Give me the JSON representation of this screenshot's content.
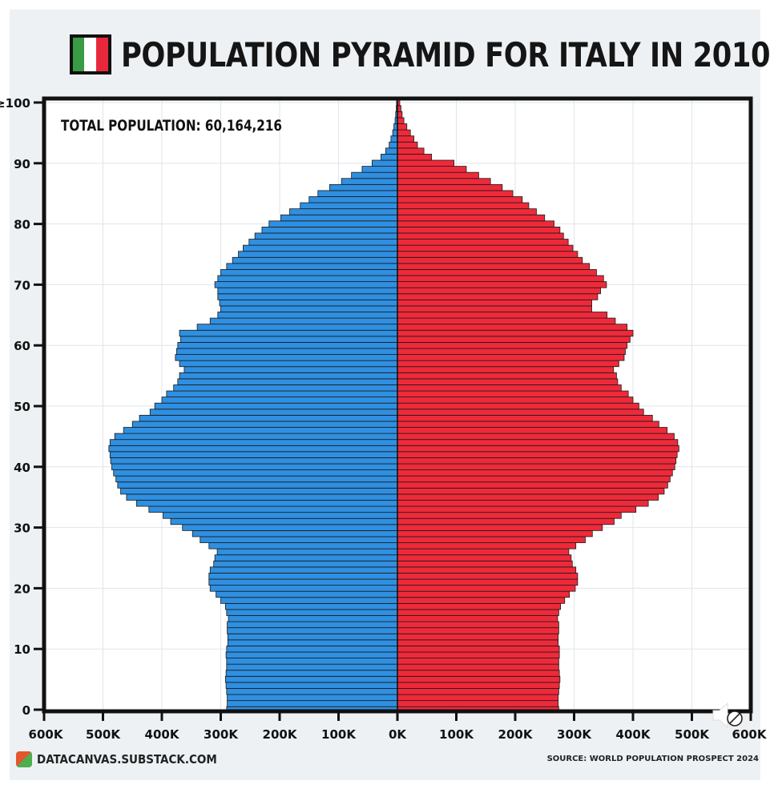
{
  "title": "POPULATION PYRAMID FOR ITALY IN 2010",
  "flag_colors": [
    "#3a9b45",
    "#ffffff",
    "#e8283a"
  ],
  "total_population_label": "TOTAL POPULATION: 60,164,216",
  "brand": "DATACANVAS.SUBSTACK.COM",
  "source": "SOURCE: WORLD POPULATION PROSPECT 2024",
  "colors": {
    "male": "#2f8fe0",
    "female": "#ee2a3a",
    "frame": "#111111",
    "grid": "#dfe5ea",
    "background": "#edf1f4",
    "plot_bg": "#ffffff"
  },
  "sound_icon": "speaker-icon",
  "chart_data": {
    "type": "bar",
    "orientation": "horizontal",
    "title": "POPULATION PYRAMID FOR ITALY IN 2010",
    "annotation": "TOTAL POPULATION: 60,164,216",
    "xlim": [
      -600000,
      600000
    ],
    "x_ticks": [
      -600000,
      -500000,
      -400000,
      -300000,
      -200000,
      -100000,
      0,
      100000,
      200000,
      300000,
      400000,
      500000,
      600000
    ],
    "x_tick_labels": [
      "600K",
      "500K",
      "400K",
      "300K",
      "200K",
      "100K",
      "0K",
      "100K",
      "200K",
      "300K",
      "400K",
      "500K",
      "600K"
    ],
    "y_ticks": [
      0,
      10,
      20,
      30,
      40,
      50,
      60,
      70,
      80,
      90,
      100
    ],
    "y_tick_labels": [
      "0",
      "10",
      "20",
      "30",
      "40",
      "50",
      "60",
      "70",
      "80",
      "90",
      "≥100"
    ],
    "grid": true,
    "categories": [
      0,
      1,
      2,
      3,
      4,
      5,
      6,
      7,
      8,
      9,
      10,
      11,
      12,
      13,
      14,
      15,
      16,
      17,
      18,
      19,
      20,
      21,
      22,
      23,
      24,
      25,
      26,
      27,
      28,
      29,
      30,
      31,
      32,
      33,
      34,
      35,
      36,
      37,
      38,
      39,
      40,
      41,
      42,
      43,
      44,
      45,
      46,
      47,
      48,
      49,
      50,
      51,
      52,
      53,
      54,
      55,
      56,
      57,
      58,
      59,
      60,
      61,
      62,
      63,
      64,
      65,
      66,
      67,
      68,
      69,
      70,
      71,
      72,
      73,
      74,
      75,
      76,
      77,
      78,
      79,
      80,
      81,
      82,
      83,
      84,
      85,
      86,
      87,
      88,
      89,
      90,
      91,
      92,
      93,
      94,
      95,
      96,
      97,
      98,
      99,
      100
    ],
    "series": [
      {
        "side": "left",
        "color": "#2f8fe0",
        "values": [
          290000,
          289000,
          289000,
          290000,
          291000,
          292000,
          291000,
          290000,
          290000,
          291000,
          290000,
          288000,
          288000,
          289000,
          289000,
          287000,
          290000,
          292000,
          300000,
          308000,
          318000,
          320000,
          320000,
          318000,
          312000,
          310000,
          306000,
          320000,
          335000,
          348000,
          365000,
          385000,
          398000,
          422000,
          443000,
          460000,
          470000,
          475000,
          478000,
          482000,
          485000,
          487000,
          488000,
          490000,
          488000,
          480000,
          465000,
          450000,
          438000,
          420000,
          412000,
          400000,
          392000,
          380000,
          373000,
          370000,
          362000,
          370000,
          377000,
          375000,
          373000,
          368000,
          370000,
          340000,
          318000,
          305000,
          300000,
          302000,
          305000,
          305000,
          310000,
          305000,
          300000,
          290000,
          280000,
          270000,
          262000,
          252000,
          242000,
          230000,
          218000,
          198000,
          183000,
          165000,
          150000,
          135000,
          115000,
          95000,
          78000,
          60000,
          43000,
          28000,
          20000,
          14000,
          11000,
          8000,
          6000,
          4000,
          3000,
          2000,
          1500
        ]
      },
      {
        "side": "right",
        "color": "#ee2a3a",
        "values": [
          274000,
          273000,
          273000,
          274000,
          275000,
          276000,
          275000,
          274000,
          274000,
          275000,
          275000,
          273000,
          273000,
          274000,
          274000,
          272000,
          274000,
          277000,
          284000,
          292000,
          302000,
          306000,
          306000,
          303000,
          297000,
          295000,
          291000,
          303000,
          319000,
          331000,
          348000,
          368000,
          380000,
          405000,
          426000,
          443000,
          453000,
          459000,
          463000,
          467000,
          471000,
          473000,
          475000,
          478000,
          476000,
          470000,
          458000,
          444000,
          433000,
          418000,
          410000,
          400000,
          392000,
          380000,
          374000,
          372000,
          367000,
          376000,
          385000,
          387000,
          390000,
          395000,
          400000,
          390000,
          370000,
          356000,
          330000,
          330000,
          340000,
          345000,
          355000,
          350000,
          338000,
          326000,
          314000,
          306000,
          298000,
          290000,
          282000,
          276000,
          266000,
          250000,
          236000,
          223000,
          212000,
          196000,
          178000,
          158000,
          138000,
          117000,
          96000,
          58000,
          45000,
          34000,
          28000,
          22000,
          16000,
          11000,
          8000,
          6000,
          4000
        ]
      }
    ]
  }
}
